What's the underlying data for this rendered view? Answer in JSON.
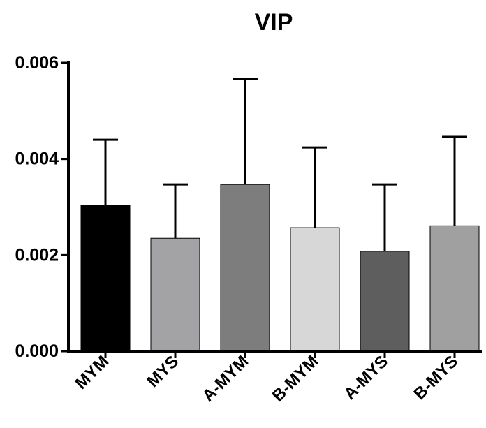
{
  "chart_data": {
    "type": "bar",
    "title": "VIP",
    "xlabel": "",
    "ylabel": "",
    "categories": [
      "MYM",
      "MYS",
      "A-MYM",
      "B-MYM",
      "A-MYS",
      "B-MYS"
    ],
    "values": [
      0.00303,
      0.00235,
      0.00347,
      0.00257,
      0.00208,
      0.00261
    ],
    "error_upper": [
      0.0044,
      0.00347,
      0.00566,
      0.00424,
      0.00347,
      0.00446
    ],
    "colors": [
      "#000000",
      "#a3a3a6",
      "#7d7d7d",
      "#d7d7d7",
      "#5e5e5e",
      "#a0a0a0"
    ],
    "ylim": [
      0,
      0.006
    ],
    "yticks": [
      0.0,
      0.002,
      0.004,
      0.006
    ],
    "ytick_labels": [
      "0.000",
      "0.002",
      "0.004",
      "0.006"
    ],
    "grid": false,
    "legend": "none"
  }
}
